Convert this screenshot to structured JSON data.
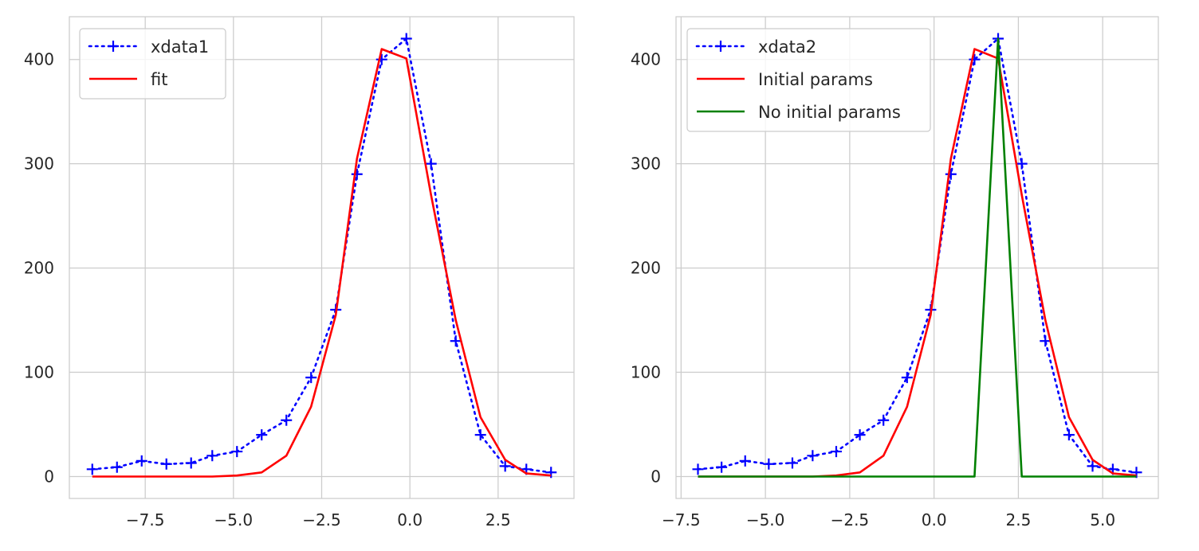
{
  "chart_data": [
    {
      "type": "line",
      "title": "",
      "xlabel": "",
      "ylabel": "",
      "xlim": [
        -9.65,
        4.65
      ],
      "ylim": [
        -21,
        441
      ],
      "grid": true,
      "legend_position": "top-left",
      "xticks": [
        -7.5,
        -5.0,
        -2.5,
        0.0,
        2.5
      ],
      "xtick_labels": [
        "−7.5",
        "−5.0",
        "−2.5",
        "0.0",
        "2.5"
      ],
      "yticks": [
        0,
        100,
        200,
        300,
        400
      ],
      "ytick_labels": [
        "0",
        "100",
        "200",
        "300",
        "400"
      ],
      "series": [
        {
          "name": "xdata1",
          "color": "#0000ff",
          "style": "dotted",
          "marker": "+",
          "x": [
            -9.0,
            -8.3,
            -7.6,
            -6.9,
            -6.2,
            -5.6,
            -4.9,
            -4.2,
            -3.5,
            -2.8,
            -2.1,
            -1.5,
            -0.8,
            -0.1,
            0.6,
            1.3,
            2.0,
            2.7,
            3.3,
            4.0
          ],
          "y": [
            7,
            9,
            15,
            12,
            13,
            20,
            24,
            40,
            54,
            95,
            160,
            290,
            400,
            420,
            300,
            130,
            40,
            10,
            7,
            4
          ]
        },
        {
          "name": "fit",
          "color": "#ff0000",
          "style": "solid",
          "x": [
            -9.0,
            -8.3,
            -7.6,
            -6.9,
            -6.2,
            -5.6,
            -4.9,
            -4.2,
            -3.5,
            -2.8,
            -2.1,
            -1.5,
            -0.8,
            -0.1,
            0.6,
            1.3,
            2.0,
            2.7,
            3.3,
            4.0
          ],
          "y": [
            0,
            0,
            0,
            0,
            0,
            0,
            1,
            4,
            20,
            67,
            155,
            305,
            410,
            401,
            270,
            150,
            57,
            16,
            3,
            1
          ]
        }
      ]
    },
    {
      "type": "line",
      "title": "",
      "xlabel": "",
      "ylabel": "",
      "xlim": [
        -7.65,
        6.65
      ],
      "ylim": [
        -21,
        441
      ],
      "grid": true,
      "legend_position": "top-left",
      "xticks": [
        -7.5,
        -5.0,
        -2.5,
        0.0,
        2.5,
        5.0
      ],
      "xtick_labels": [
        "−7.5",
        "−5.0",
        "−2.5",
        "0.0",
        "2.5",
        "5.0"
      ],
      "yticks": [
        0,
        100,
        200,
        300,
        400
      ],
      "ytick_labels": [
        "0",
        "100",
        "200",
        "300",
        "400"
      ],
      "series": [
        {
          "name": "xdata2",
          "color": "#0000ff",
          "style": "dotted",
          "marker": "+",
          "x": [
            -7.0,
            -6.3,
            -5.6,
            -4.9,
            -4.2,
            -3.6,
            -2.9,
            -2.2,
            -1.5,
            -0.8,
            -0.1,
            0.5,
            1.2,
            1.9,
            2.6,
            3.3,
            4.0,
            4.7,
            5.3,
            6.0
          ],
          "y": [
            7,
            9,
            15,
            12,
            13,
            20,
            24,
            40,
            54,
            95,
            160,
            290,
            400,
            420,
            300,
            130,
            40,
            10,
            7,
            4
          ]
        },
        {
          "name": "Initial params",
          "color": "#ff0000",
          "style": "solid",
          "x": [
            -7.0,
            -6.3,
            -5.6,
            -4.9,
            -4.2,
            -3.6,
            -2.9,
            -2.2,
            -1.5,
            -0.8,
            -0.1,
            0.5,
            1.2,
            1.9,
            2.6,
            3.3,
            4.0,
            4.7,
            5.3,
            6.0
          ],
          "y": [
            0,
            0,
            0,
            0,
            0,
            0,
            1,
            4,
            20,
            67,
            155,
            305,
            410,
            401,
            270,
            150,
            57,
            16,
            3,
            1
          ]
        },
        {
          "name": "No initial params",
          "color": "#008000",
          "style": "solid",
          "x": [
            -7.0,
            -6.3,
            -5.6,
            -4.9,
            -4.2,
            -3.6,
            -2.9,
            -2.2,
            -1.5,
            -0.8,
            -0.1,
            0.5,
            1.2,
            1.9,
            2.6,
            3.3,
            4.0,
            4.7,
            5.3,
            6.0
          ],
          "y": [
            0,
            0,
            0,
            0,
            0,
            0,
            0,
            0,
            0,
            0,
            0,
            0,
            0,
            420,
            0,
            0,
            0,
            0,
            0,
            0
          ]
        }
      ]
    }
  ]
}
